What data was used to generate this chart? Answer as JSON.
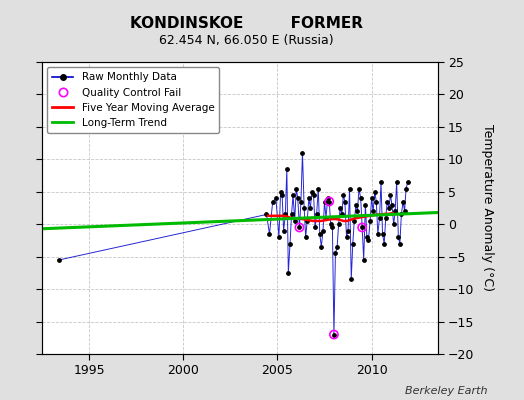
{
  "title": "KONDINSKOE         FORMER",
  "subtitle": "62.454 N, 66.050 E (Russia)",
  "ylabel": "Temperature Anomaly (°C)",
  "credit": "Berkeley Earth",
  "xlim": [
    1992.5,
    2013.5
  ],
  "ylim": [
    -20,
    25
  ],
  "yticks": [
    -20,
    -15,
    -10,
    -5,
    0,
    5,
    10,
    15,
    20,
    25
  ],
  "xticks": [
    1995,
    2000,
    2005,
    2010
  ],
  "bg_color": "#e0e0e0",
  "plot_bg_color": "#ffffff",
  "raw_color": "#0000cc",
  "raw_marker_color": "#000000",
  "qc_color": "#ff00ff",
  "ma_color": "#ff0000",
  "trend_color": "#00bb00",
  "raw_monthly": [
    [
      1993.42,
      -5.5
    ],
    [
      2004.42,
      1.5
    ],
    [
      2004.58,
      -1.5
    ],
    [
      2004.75,
      3.5
    ],
    [
      2004.92,
      4.0
    ],
    [
      2005.08,
      -2.0
    ],
    [
      2005.17,
      5.0
    ],
    [
      2005.25,
      4.5
    ],
    [
      2005.33,
      -1.0
    ],
    [
      2005.42,
      1.5
    ],
    [
      2005.5,
      8.5
    ],
    [
      2005.58,
      -7.5
    ],
    [
      2005.67,
      -3.0
    ],
    [
      2005.75,
      1.5
    ],
    [
      2005.83,
      4.5
    ],
    [
      2005.92,
      0.5
    ],
    [
      2006.0,
      5.5
    ],
    [
      2006.08,
      4.0
    ],
    [
      2006.17,
      -0.5
    ],
    [
      2006.25,
      3.5
    ],
    [
      2006.33,
      11.0
    ],
    [
      2006.42,
      2.5
    ],
    [
      2006.5,
      -2.0
    ],
    [
      2006.58,
      0.5
    ],
    [
      2006.67,
      4.0
    ],
    [
      2006.75,
      2.5
    ],
    [
      2006.83,
      5.0
    ],
    [
      2006.92,
      4.5
    ],
    [
      2007.0,
      -0.5
    ],
    [
      2007.08,
      1.5
    ],
    [
      2007.17,
      5.5
    ],
    [
      2007.25,
      -1.5
    ],
    [
      2007.33,
      -3.5
    ],
    [
      2007.42,
      -1.0
    ],
    [
      2007.5,
      3.5
    ],
    [
      2007.58,
      1.0
    ],
    [
      2007.67,
      4.0
    ],
    [
      2007.75,
      3.5
    ],
    [
      2007.83,
      0.0
    ],
    [
      2007.92,
      -0.5
    ],
    [
      2008.0,
      -17.0
    ],
    [
      2008.08,
      -4.5
    ],
    [
      2008.17,
      -3.5
    ],
    [
      2008.25,
      0.0
    ],
    [
      2008.33,
      2.5
    ],
    [
      2008.42,
      1.5
    ],
    [
      2008.5,
      4.5
    ],
    [
      2008.58,
      3.5
    ],
    [
      2008.67,
      -2.0
    ],
    [
      2008.75,
      -1.0
    ],
    [
      2008.83,
      5.5
    ],
    [
      2008.92,
      -8.5
    ],
    [
      2009.0,
      -3.0
    ],
    [
      2009.08,
      0.5
    ],
    [
      2009.17,
      3.0
    ],
    [
      2009.25,
      2.0
    ],
    [
      2009.33,
      5.5
    ],
    [
      2009.42,
      4.0
    ],
    [
      2009.5,
      -0.5
    ],
    [
      2009.58,
      -5.5
    ],
    [
      2009.67,
      3.0
    ],
    [
      2009.75,
      -2.0
    ],
    [
      2009.83,
      -2.5
    ],
    [
      2009.92,
      0.5
    ],
    [
      2010.0,
      4.0
    ],
    [
      2010.08,
      2.0
    ],
    [
      2010.17,
      5.0
    ],
    [
      2010.25,
      3.5
    ],
    [
      2010.33,
      -1.5
    ],
    [
      2010.42,
      1.0
    ],
    [
      2010.5,
      6.5
    ],
    [
      2010.58,
      -1.5
    ],
    [
      2010.67,
      -3.0
    ],
    [
      2010.75,
      1.0
    ],
    [
      2010.83,
      3.5
    ],
    [
      2010.92,
      2.5
    ],
    [
      2011.0,
      4.5
    ],
    [
      2011.08,
      3.0
    ],
    [
      2011.17,
      0.0
    ],
    [
      2011.25,
      2.0
    ],
    [
      2011.33,
      6.5
    ],
    [
      2011.42,
      -2.0
    ],
    [
      2011.5,
      -3.0
    ],
    [
      2011.58,
      1.5
    ],
    [
      2011.67,
      3.5
    ],
    [
      2011.75,
      2.0
    ],
    [
      2011.83,
      5.5
    ],
    [
      2011.92,
      6.5
    ]
  ],
  "qc_fails": [
    [
      2008.0,
      -17.0
    ],
    [
      2006.17,
      -0.5
    ],
    [
      2007.75,
      3.5
    ],
    [
      2009.5,
      -0.5
    ]
  ],
  "moving_avg": [
    [
      2004.5,
      1.3
    ],
    [
      2004.7,
      1.3
    ],
    [
      2004.9,
      1.3
    ],
    [
      2005.1,
      1.3
    ],
    [
      2005.3,
      1.3
    ],
    [
      2005.5,
      1.2
    ],
    [
      2005.7,
      1.0
    ],
    [
      2005.9,
      0.9
    ],
    [
      2006.1,
      0.9
    ],
    [
      2006.3,
      0.8
    ],
    [
      2006.5,
      0.7
    ],
    [
      2006.7,
      0.6
    ],
    [
      2006.9,
      0.5
    ],
    [
      2007.1,
      0.5
    ],
    [
      2007.3,
      0.5
    ],
    [
      2007.5,
      0.6
    ],
    [
      2007.7,
      0.7
    ],
    [
      2007.9,
      0.8
    ],
    [
      2008.1,
      0.8
    ],
    [
      2008.3,
      0.7
    ],
    [
      2008.5,
      0.5
    ],
    [
      2008.7,
      0.5
    ],
    [
      2008.9,
      0.7
    ],
    [
      2009.1,
      0.9
    ],
    [
      2009.3,
      1.0
    ],
    [
      2009.5,
      1.1
    ],
    [
      2009.7,
      1.2
    ],
    [
      2009.9,
      1.3
    ],
    [
      2010.1,
      1.4
    ],
    [
      2010.3,
      1.5
    ],
    [
      2010.5,
      1.5
    ],
    [
      2010.7,
      1.6
    ],
    [
      2010.9,
      1.6
    ],
    [
      2011.1,
      1.7
    ]
  ],
  "trend_x": [
    1992.5,
    2013.5
  ],
  "trend_y": [
    -0.7,
    1.8
  ]
}
